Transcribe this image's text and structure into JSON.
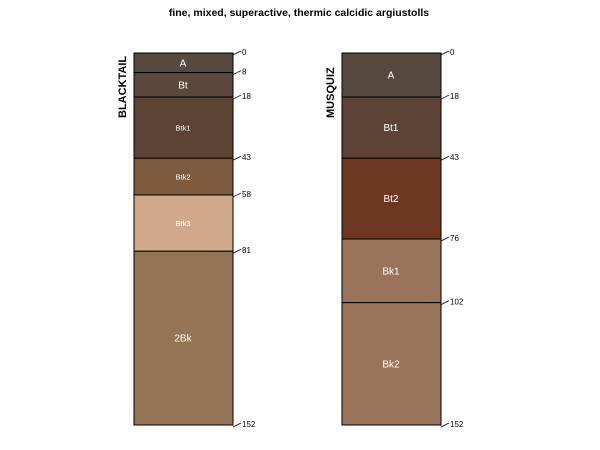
{
  "title": "fine, mixed, superactive, thermic calcidic argiustolls",
  "depth_max": 152,
  "profiles": [
    {
      "name": "BLACKTAIL",
      "horizons": [
        {
          "name": "A",
          "top": 0,
          "bottom": 8,
          "color": "#564A40",
          "label_size": "large"
        },
        {
          "name": "Bt",
          "top": 8,
          "bottom": 18,
          "color": "#5B473C",
          "label_size": "large"
        },
        {
          "name": "Btk1",
          "top": 18,
          "bottom": 43,
          "color": "#5D4334",
          "label_size": "small"
        },
        {
          "name": "Btk2",
          "top": 43,
          "bottom": 58,
          "color": "#7E5B3E",
          "label_size": "small"
        },
        {
          "name": "Btk3",
          "top": 58,
          "bottom": 81,
          "color": "#CFA98A",
          "label_size": "small"
        },
        {
          "name": "2Bk",
          "top": 81,
          "bottom": 152,
          "color": "#967456",
          "label_size": "large"
        }
      ],
      "depth_labels": [
        "0",
        "8",
        "18",
        "43",
        "58",
        "81",
        "152"
      ]
    },
    {
      "name": "MUSQUIZ",
      "horizons": [
        {
          "name": "A",
          "top": 0,
          "bottom": 18,
          "color": "#564A40",
          "label_size": "large"
        },
        {
          "name": "Bt1",
          "top": 18,
          "bottom": 43,
          "color": "#5D4335",
          "label_size": "large"
        },
        {
          "name": "Bt2",
          "top": 43,
          "bottom": 76,
          "color": "#6E3823",
          "label_size": "large"
        },
        {
          "name": "Bk1",
          "top": 76,
          "bottom": 102,
          "color": "#9A735B",
          "label_size": "large"
        },
        {
          "name": "Bk2",
          "top": 102,
          "bottom": 152,
          "color": "#9A735B",
          "label_size": "large"
        }
      ],
      "depth_labels": [
        "0",
        "18",
        "43",
        "76",
        "102",
        "152"
      ]
    }
  ]
}
